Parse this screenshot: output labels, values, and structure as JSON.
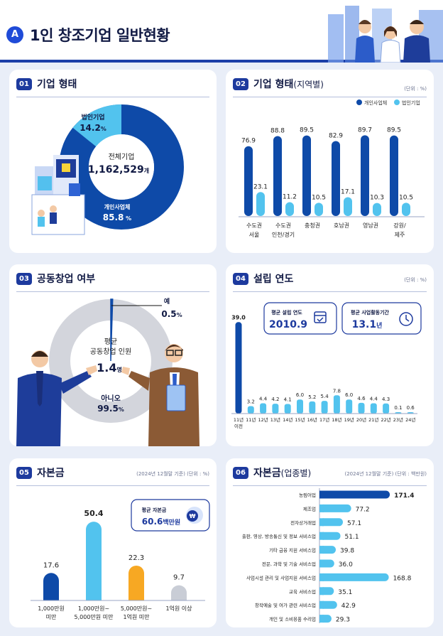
{
  "header": {
    "badge": "A",
    "title": "1인 창조기업 일반현황"
  },
  "sections": {
    "s01": {
      "num": "01",
      "title": "기업 형태"
    },
    "s02": {
      "num": "02",
      "title": "기업 형태",
      "subtitle": "(지역별)",
      "unit": "(단위 : %)"
    },
    "s03": {
      "num": "03",
      "title": "공동창업 여부"
    },
    "s04": {
      "num": "04",
      "title": "설립 연도",
      "unit": "(단위 : %)"
    },
    "s05": {
      "num": "05",
      "title": "자본금",
      "unit": "(2024년 12월말 기준) (단위 : %)"
    },
    "s06": {
      "num": "06",
      "title": "자본금",
      "subtitle": "(업종별)",
      "unit": "(2024년 12월말 기준) (단위 : 백만원)"
    }
  },
  "colors": {
    "navy": "#0e4aa8",
    "sky": "#52c3ee",
    "orange": "#f7a823",
    "gray": "#c9cdd6",
    "donut_gray": "#d3d5dc",
    "title_navy": "#1d3a9e"
  },
  "chart_data": [
    {
      "type": "pie",
      "id": "firm_type",
      "center_label": "전체기업",
      "center_value": "1,162,529",
      "center_unit": "개",
      "slices": [
        {
          "name": "법인기업",
          "value": 14.2,
          "value_label": "14.2",
          "unit": "%"
        },
        {
          "name": "개인사업체",
          "value": 85.8,
          "value_label": "85.8",
          "unit": " %"
        }
      ]
    },
    {
      "type": "bar",
      "id": "firm_type_region",
      "categories": [
        "수도권\n서울",
        "수도권\n인천/경기",
        "충청권",
        "호남권",
        "영남권",
        "강원/\n제주"
      ],
      "series": [
        {
          "name": "개인사업체",
          "values": [
            76.9,
            88.8,
            89.5,
            82.9,
            89.7,
            89.5
          ]
        },
        {
          "name": "법인기업",
          "values": [
            23.1,
            11.2,
            10.5,
            17.1,
            10.3,
            10.5
          ]
        }
      ],
      "ylim": [
        0,
        100
      ]
    },
    {
      "type": "pie",
      "id": "co_founding",
      "center_label_1": "평균",
      "center_label_2": "공동창업 인원",
      "center_value": "1.4",
      "center_unit": "명",
      "slices": [
        {
          "name": "예",
          "value": 0.5,
          "value_label": "0.5",
          "unit": "%"
        },
        {
          "name": "아니오",
          "value": 99.5,
          "value_label": "99.5",
          "unit": "%"
        }
      ]
    },
    {
      "type": "bar",
      "id": "founding_year",
      "categories": [
        "11년\n이전",
        "11년",
        "12년",
        "13년",
        "14년",
        "15년",
        "16년",
        "17년",
        "18년",
        "19년",
        "20년",
        "21년",
        "22년",
        "23년",
        "24년"
      ],
      "values": [
        39.0,
        3.2,
        4.4,
        4.2,
        4.1,
        6.0,
        5.2,
        5.4,
        7.8,
        6.0,
        4.6,
        4.4,
        4.3,
        0.1,
        0.6
      ],
      "value_labels": [
        "39.0",
        "3.2",
        "4.4",
        "4.2",
        "4.1",
        "6.0",
        "5.2",
        "5.4",
        "7.8",
        "6.0",
        "4.6",
        "4.4",
        "4.3",
        "0.1",
        "0.6"
      ],
      "ylim": [
        0,
        40
      ],
      "info_boxes": [
        {
          "label": "평균 설립 연도",
          "value": "2010.9",
          "unit": ""
        },
        {
          "label": "평균 사업활동기간",
          "value": "13.1",
          "unit": "년"
        }
      ]
    },
    {
      "type": "bar",
      "id": "capital",
      "categories": [
        "1,000만원\n미만",
        "1,000만원~\n5,000만원 미만",
        "5,000만원~\n1억원 미만",
        "1억원 이상"
      ],
      "values": [
        17.6,
        50.4,
        22.3,
        9.7
      ],
      "value_labels": [
        "17.6",
        "50.4",
        "22.3",
        "9.7"
      ],
      "ylim": [
        0,
        55
      ],
      "info_box": {
        "label": "평균 자본금",
        "value": "60.6",
        "unit": "백만원"
      }
    },
    {
      "type": "bar",
      "id": "capital_by_industry",
      "orientation": "horizontal",
      "categories": [
        "농림어업",
        "제조업",
        "전자상거래업",
        "출판, 영상, 방송통신 및 정보 서비스업",
        "기타 금융 지원 서비스업",
        "전문, 과학 및 기술 서비스업",
        "사업시설 관리 및 사업지원 서비스업",
        "교육 서비스업",
        "창작예술 및 여가 관련 서비스업",
        "개인 및 소비용품 수리업"
      ],
      "values": [
        171.4,
        77.2,
        57.1,
        51.1,
        39.8,
        36.0,
        168.8,
        35.1,
        42.9,
        29.3
      ],
      "value_labels": [
        "171.4",
        "77.2",
        "57.1",
        "51.1",
        "39.8",
        "36.0",
        "168.8",
        "35.1",
        "42.9",
        "29.3"
      ],
      "xlim": [
        0,
        180
      ]
    }
  ]
}
